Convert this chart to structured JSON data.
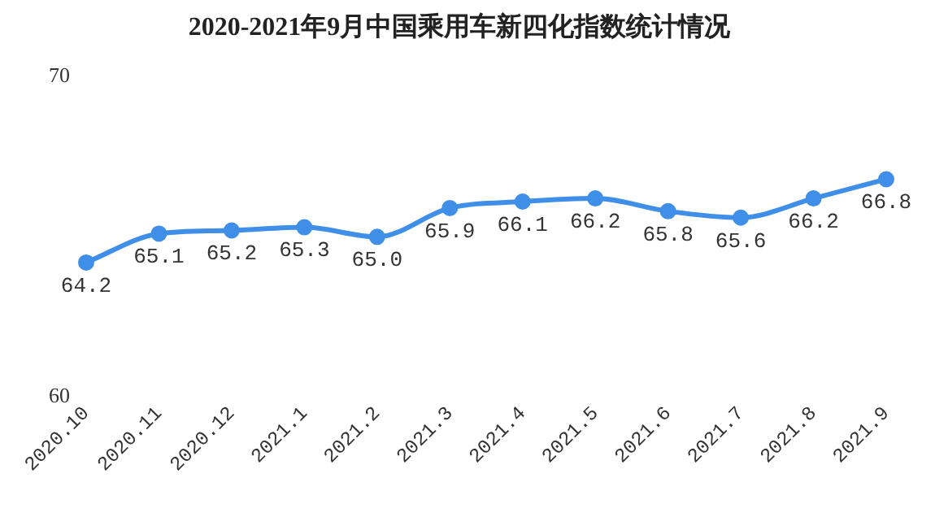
{
  "chart_data": {
    "type": "line",
    "title": "2020-2021年9月中国乘用车新四化指数统计情况",
    "categories": [
      "2020.10",
      "2020.11",
      "2020.12",
      "2021.1",
      "2021.2",
      "2021.3",
      "2021.4",
      "2021.5",
      "2021.6",
      "2021.7",
      "2021.8",
      "2021.9"
    ],
    "series": [
      {
        "color": "#3f8fe8",
        "values": [
          64.2,
          65.1,
          65.2,
          65.3,
          65.0,
          65.9,
          66.1,
          66.2,
          65.8,
          65.6,
          66.2,
          66.8
        ],
        "value_labels": [
          "64.2",
          "65.1",
          "65.2",
          "65.3",
          "65.0",
          "65.9",
          "66.1",
          "66.2",
          "65.8",
          "65.6",
          "66.2",
          "66.8"
        ]
      }
    ],
    "ylim": [
      60,
      70
    ],
    "yticks": [
      60,
      70
    ],
    "grid": false,
    "legend": false,
    "marker": "circle",
    "line_style": "solid"
  }
}
